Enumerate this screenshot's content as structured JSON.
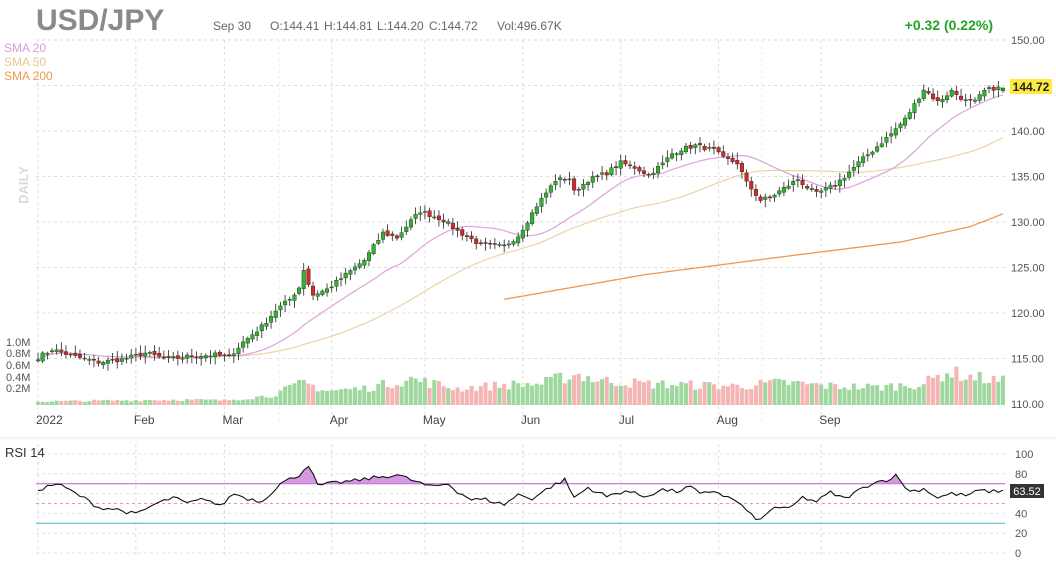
{
  "header": {
    "symbol": "USD/JPY",
    "date": "Sep 30",
    "open": "O:144.41",
    "high": "H:144.81",
    "low": "L:144.20",
    "close": "C:144.72",
    "volume": "Vol:496.67K",
    "change": "+0.32 (0.22%)"
  },
  "legend": [
    {
      "label": "SMA 20",
      "color": "#d99bd9"
    },
    {
      "label": "SMA 50",
      "color": "#e8c98f"
    },
    {
      "label": "SMA 200",
      "color": "#ee9850"
    }
  ],
  "period_label": "DAILY",
  "price_tag": "144.72",
  "rsi_title": "RSI 14",
  "rsi_tag": "63.52",
  "colors": {
    "up": "#2cb62c",
    "down": "#d62828",
    "vol_up": "#9fd89f",
    "vol_down": "#f5b5b5",
    "sma20": "#dca3dc",
    "sma50": "#ecd3a3",
    "sma200": "#ee9850",
    "rsi_fill": "#cf86de",
    "rsi_line": "#111111",
    "rsi_70": "#b25fc7",
    "rsi_30": "#49b6c9",
    "tag": "#ffeb3b",
    "change": "#23a523"
  },
  "chart_data": [
    {
      "type": "candlestick",
      "title": "USD/JPY",
      "period": "DAILY",
      "xlabels": [
        "2022",
        "Feb",
        "Mar",
        "Apr",
        "May",
        "Jun",
        "Jul",
        "Aug",
        "Sep"
      ],
      "yticks": [
        "150.00",
        "145.00",
        "140.00",
        "135.00",
        "130.00",
        "125.00",
        "120.00",
        "115.00",
        "110.00"
      ],
      "ylim": [
        110,
        150
      ],
      "volume_axis": [
        "1.0M",
        "0.8M",
        "0.6M",
        "0.4M",
        "0.2M"
      ],
      "close_anchors": [
        [
          0,
          115.1
        ],
        [
          3,
          116.0
        ],
        [
          8,
          115.2
        ],
        [
          13,
          114.6
        ],
        [
          18,
          114.9
        ],
        [
          23,
          115.6
        ],
        [
          28,
          114.9
        ],
        [
          33,
          115.3
        ],
        [
          38,
          115.4
        ],
        [
          41,
          115.2
        ],
        [
          44,
          116.8
        ],
        [
          48,
          118.5
        ],
        [
          51,
          120.3
        ],
        [
          54,
          121.5
        ],
        [
          56,
          122.8
        ],
        [
          57,
          124.8
        ],
        [
          58,
          123.2
        ],
        [
          59,
          122.0
        ],
        [
          62,
          122.6
        ],
        [
          66,
          124.2
        ],
        [
          70,
          125.8
        ],
        [
          74,
          128.8
        ],
        [
          77,
          128.3
        ],
        [
          80,
          130.1
        ],
        [
          82,
          131.2
        ],
        [
          87,
          130.2
        ],
        [
          90,
          129.0
        ],
        [
          95,
          127.5
        ],
        [
          100,
          127.3
        ],
        [
          103,
          128.5
        ],
        [
          107,
          131.8
        ],
        [
          111,
          134.6
        ],
        [
          114,
          134.8
        ],
        [
          115,
          133.3
        ],
        [
          118,
          134.6
        ],
        [
          122,
          135.4
        ],
        [
          125,
          136.5
        ],
        [
          128,
          136.0
        ],
        [
          131,
          135.2
        ],
        [
          134,
          136.4
        ],
        [
          136,
          137.5
        ],
        [
          138,
          138.0
        ],
        [
          141,
          138.4
        ],
        [
          145,
          137.9
        ],
        [
          147,
          137.0
        ],
        [
          150,
          136.5
        ],
        [
          152,
          134.3
        ],
        [
          155,
          132.4
        ],
        [
          157,
          132.7
        ],
        [
          160,
          133.7
        ],
        [
          163,
          134.7
        ],
        [
          165,
          133.8
        ],
        [
          167,
          133.1
        ],
        [
          169,
          133.6
        ],
        [
          171,
          134.1
        ],
        [
          173,
          135.0
        ],
        [
          176,
          136.5
        ],
        [
          180,
          138.3
        ],
        [
          183,
          139.7
        ],
        [
          186,
          141.3
        ],
        [
          188,
          142.9
        ],
        [
          190,
          144.6
        ],
        [
          193,
          143.2
        ],
        [
          196,
          144.4
        ],
        [
          199,
          143.3
        ],
        [
          201,
          143.2
        ],
        [
          203,
          144.4
        ],
        [
          205,
          144.7
        ],
        [
          207,
          144.72
        ]
      ],
      "sma200_anchors": [
        [
          100,
          121.5
        ],
        [
          130,
          124.2
        ],
        [
          160,
          126.2
        ],
        [
          185,
          127.8
        ],
        [
          200,
          129.5
        ],
        [
          207,
          130.9
        ]
      ],
      "volume_anchors": [
        [
          0,
          0.06
        ],
        [
          10,
          0.07
        ],
        [
          20,
          0.08
        ],
        [
          30,
          0.09
        ],
        [
          40,
          0.08
        ],
        [
          50,
          0.16
        ],
        [
          57,
          0.38
        ],
        [
          62,
          0.24
        ],
        [
          70,
          0.28
        ],
        [
          80,
          0.44
        ],
        [
          90,
          0.28
        ],
        [
          100,
          0.34
        ],
        [
          108,
          0.36
        ],
        [
          112,
          0.46
        ],
        [
          116,
          0.52
        ],
        [
          120,
          0.42
        ],
        [
          130,
          0.36
        ],
        [
          140,
          0.34
        ],
        [
          150,
          0.32
        ],
        [
          160,
          0.38
        ],
        [
          170,
          0.32
        ],
        [
          180,
          0.3
        ],
        [
          190,
          0.36
        ],
        [
          195,
          0.56
        ],
        [
          200,
          0.48
        ],
        [
          207,
          0.4
        ]
      ]
    },
    {
      "type": "line",
      "title": "RSI 14",
      "yticks": [
        "100",
        "80",
        "60",
        "40",
        "20",
        "0"
      ],
      "ylim": [
        0,
        100
      ],
      "reference_lines": [
        70,
        50,
        30
      ],
      "rsi_anchors": [
        [
          0,
          64
        ],
        [
          4,
          70
        ],
        [
          7,
          63
        ],
        [
          10,
          55
        ],
        [
          13,
          46
        ],
        [
          17,
          44
        ],
        [
          21,
          39
        ],
        [
          25,
          49
        ],
        [
          29,
          56
        ],
        [
          32,
          50
        ],
        [
          36,
          55
        ],
        [
          39,
          47
        ],
        [
          42,
          60
        ],
        [
          45,
          55
        ],
        [
          48,
          52
        ],
        [
          52,
          70
        ],
        [
          56,
          79
        ],
        [
          58,
          89
        ],
        [
          60,
          68
        ],
        [
          64,
          71
        ],
        [
          68,
          73
        ],
        [
          72,
          76
        ],
        [
          77,
          79
        ],
        [
          80,
          74
        ],
        [
          84,
          67
        ],
        [
          88,
          70
        ],
        [
          90,
          62
        ],
        [
          93,
          54
        ],
        [
          96,
          54
        ],
        [
          100,
          49
        ],
        [
          103,
          59
        ],
        [
          106,
          55
        ],
        [
          110,
          67
        ],
        [
          113,
          74
        ],
        [
          115,
          56
        ],
        [
          118,
          66
        ],
        [
          122,
          57
        ],
        [
          126,
          63
        ],
        [
          130,
          57
        ],
        [
          134,
          64
        ],
        [
          137,
          62
        ],
        [
          140,
          67
        ],
        [
          142,
          59
        ],
        [
          145,
          63
        ],
        [
          148,
          56
        ],
        [
          150,
          52
        ],
        [
          153,
          38
        ],
        [
          155,
          33
        ],
        [
          158,
          47
        ],
        [
          161,
          44
        ],
        [
          164,
          56
        ],
        [
          167,
          52
        ],
        [
          170,
          61
        ],
        [
          173,
          55
        ],
        [
          176,
          63
        ],
        [
          179,
          71
        ],
        [
          182,
          74
        ],
        [
          184,
          78
        ],
        [
          187,
          62
        ],
        [
          190,
          65
        ],
        [
          193,
          56
        ],
        [
          196,
          60
        ],
        [
          199,
          58
        ],
        [
          202,
          63
        ],
        [
          205,
          62
        ],
        [
          207,
          63.52
        ]
      ]
    }
  ]
}
